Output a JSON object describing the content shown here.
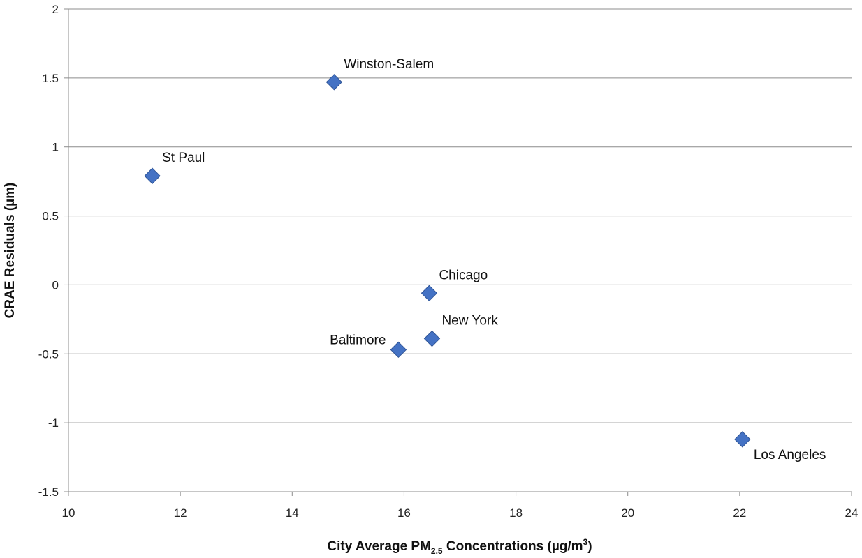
{
  "chart_data": {
    "type": "scatter",
    "title": "",
    "xlabel": {
      "prefix": "City Average PM",
      "subscript": "2.5",
      "middle": " Concentrations (µg/m",
      "superscript": "3",
      "suffix": ")"
    },
    "ylabel": "CRAE Residuals (µm)",
    "xlim": [
      10,
      24
    ],
    "ylim": [
      -1.5,
      2
    ],
    "xticks": [
      10,
      12,
      14,
      16,
      18,
      20,
      22,
      24
    ],
    "yticks": [
      -1.5,
      -1,
      -0.5,
      0,
      0.5,
      1,
      1.5,
      2
    ],
    "grid": "horizontal",
    "marker": "diamond",
    "marker_color": "#4472C4",
    "points": [
      {
        "label": "Winston-Salem",
        "x": 14.75,
        "y": 1.47,
        "label_pos": "upper-right"
      },
      {
        "label": "St Paul",
        "x": 11.5,
        "y": 0.79,
        "label_pos": "upper-right"
      },
      {
        "label": "Chicago",
        "x": 16.45,
        "y": -0.06,
        "label_pos": "upper-right"
      },
      {
        "label": "New York",
        "x": 16.5,
        "y": -0.39,
        "label_pos": "upper-right"
      },
      {
        "label": "Baltimore",
        "x": 15.9,
        "y": -0.47,
        "label_pos": "upper-left"
      },
      {
        "label": "Los Angeles",
        "x": 22.05,
        "y": -1.12,
        "label_pos": "lower-right"
      }
    ]
  }
}
